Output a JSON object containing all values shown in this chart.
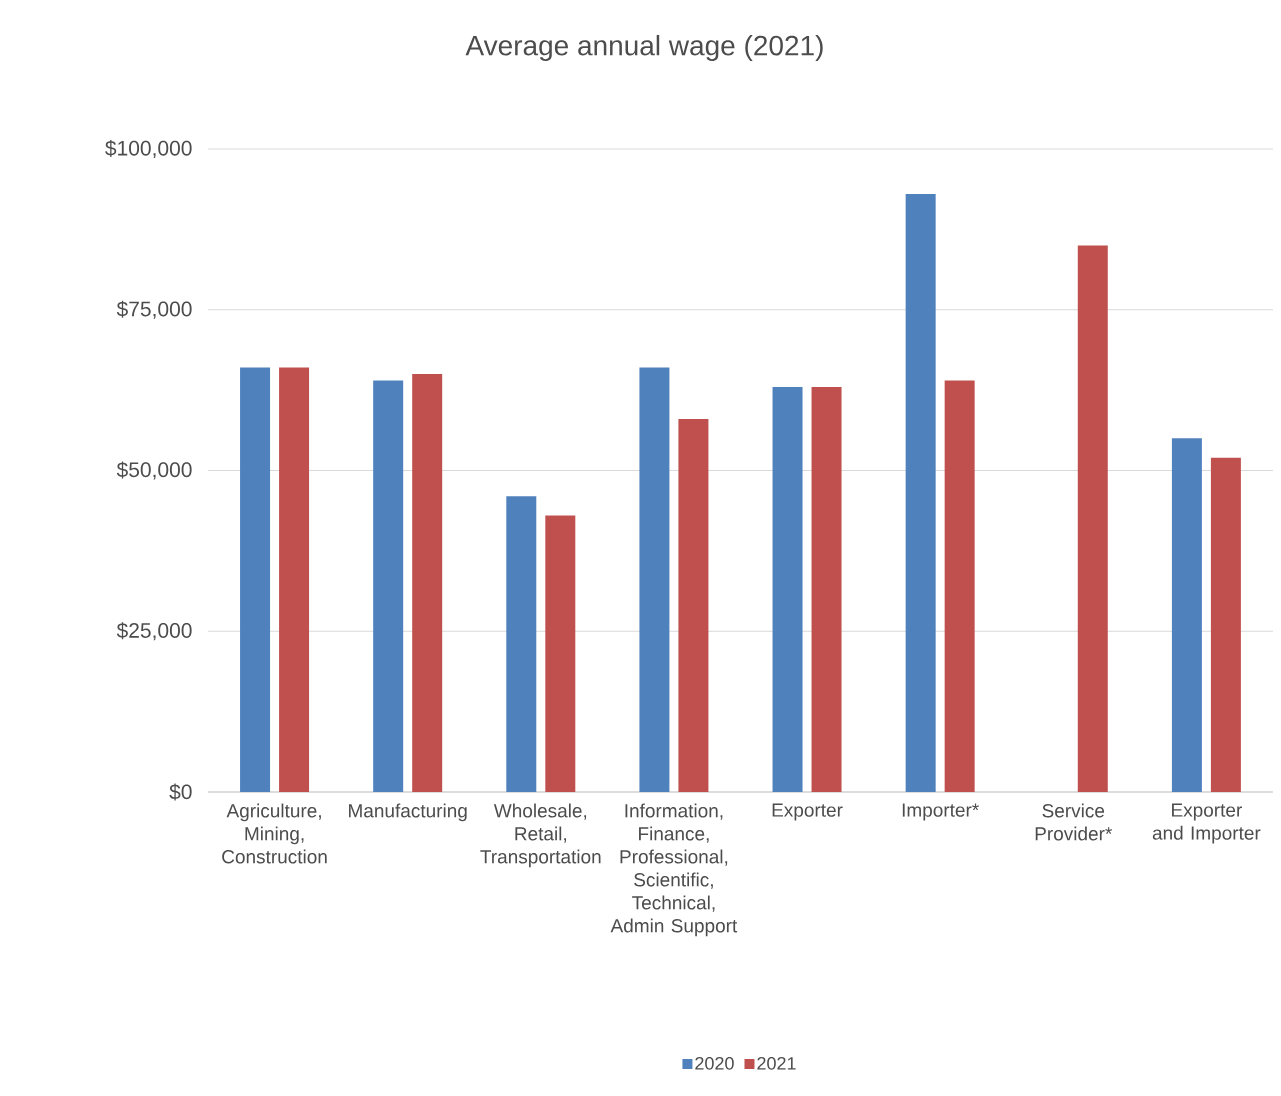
{
  "chart_data": {
    "type": "bar",
    "title": "Average annual wage (2021)",
    "categories": [
      "Agriculture, Mining, Construction",
      "Manufacturing",
      "Wholesale, Retail, Transportation",
      "Information, Finance, Professional, Scientific, Technical, Admin Support",
      "Exporter",
      "Importer*",
      "Service Provider*",
      "Exporter and Importer"
    ],
    "series": [
      {
        "name": "2020",
        "color": "#4f81bd",
        "values": [
          66000,
          64000,
          46000,
          66000,
          63000,
          93000,
          null,
          55000
        ]
      },
      {
        "name": "2021",
        "color": "#c0504d",
        "values": [
          66000,
          65000,
          43000,
          58000,
          63000,
          64000,
          85000,
          52000
        ]
      }
    ],
    "ylim": [
      0,
      100000
    ],
    "yticks": [
      {
        "value": 0,
        "label": "$0"
      },
      {
        "value": 25000,
        "label": "$25,000"
      },
      {
        "value": 50000,
        "label": "$50,000"
      },
      {
        "value": 75000,
        "label": "$75,000"
      },
      {
        "value": 100000,
        "label": "$100,000"
      }
    ],
    "grid": "y",
    "legend": "bottom"
  }
}
